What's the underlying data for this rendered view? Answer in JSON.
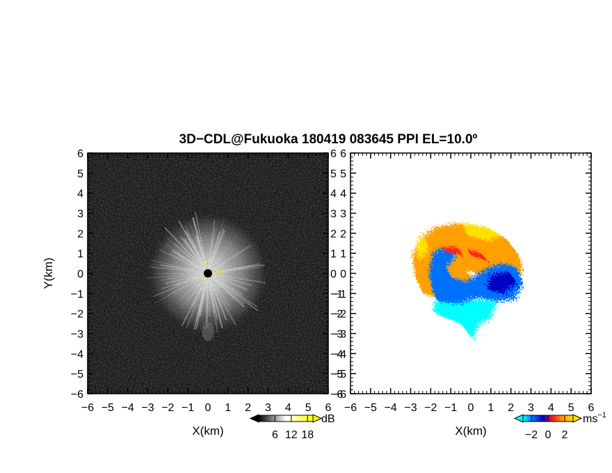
{
  "title": "3D−CDL@Fukuoka 180419 083645 PPI EL=10.0º",
  "chart_data": [
    {
      "type": "heatmap",
      "panel": "left",
      "quantity": "reflectivity",
      "xlabel": "X(km)",
      "ylabel": "Y(km)",
      "xlim": [
        -6,
        6
      ],
      "ylim": [
        -6,
        6
      ],
      "xticks": [
        "−6",
        "−5",
        "−4",
        "−3",
        "−2",
        "−1",
        "0",
        "1",
        "2",
        "3",
        "4",
        "5",
        "6"
      ],
      "yticks": [
        "−6",
        "−5",
        "−4",
        "−3",
        "−2",
        "−1",
        "0",
        "1",
        "2",
        "3",
        "4",
        "5",
        "6"
      ],
      "echo_radius_km": 3.0,
      "radar_site": [
        0,
        0
      ],
      "colorbar": {
        "unit": "dB",
        "ticks": [
          "6",
          "12",
          "18"
        ],
        "tick_values": [
          6,
          12,
          18
        ],
        "range": [
          0,
          20
        ],
        "colors": [
          "#000000",
          "#ffffff",
          "#ffff00"
        ]
      }
    },
    {
      "type": "heatmap",
      "panel": "right",
      "quantity": "doppler-velocity",
      "xlabel": "X(km)",
      "ylabel": "",
      "xlim": [
        -6,
        6
      ],
      "ylim": [
        -6,
        6
      ],
      "xticks": [
        "−6",
        "−5",
        "−4",
        "−3",
        "−2",
        "−1",
        "0",
        "1",
        "2",
        "3",
        "4",
        "5",
        "6"
      ],
      "yticks": [
        "−6",
        "−5",
        "−4",
        "−3",
        "−2",
        "−1",
        "0",
        "1",
        "2",
        "3",
        "4",
        "5",
        "6"
      ],
      "echo_extent_km": {
        "x": [
          -3.2,
          3.3
        ],
        "y": [
          -3.4,
          2.9
        ]
      },
      "colorbar": {
        "unit": "ms",
        "unit_exponent": "−1",
        "ticks": [
          "−2",
          "0",
          "2"
        ],
        "tick_values": [
          -2,
          0,
          2
        ],
        "range": [
          -3,
          3
        ],
        "colors": [
          "#00ffff",
          "#0070ff",
          "#0000c0",
          "#ff2020",
          "#ffa000",
          "#ffe000"
        ]
      }
    }
  ]
}
